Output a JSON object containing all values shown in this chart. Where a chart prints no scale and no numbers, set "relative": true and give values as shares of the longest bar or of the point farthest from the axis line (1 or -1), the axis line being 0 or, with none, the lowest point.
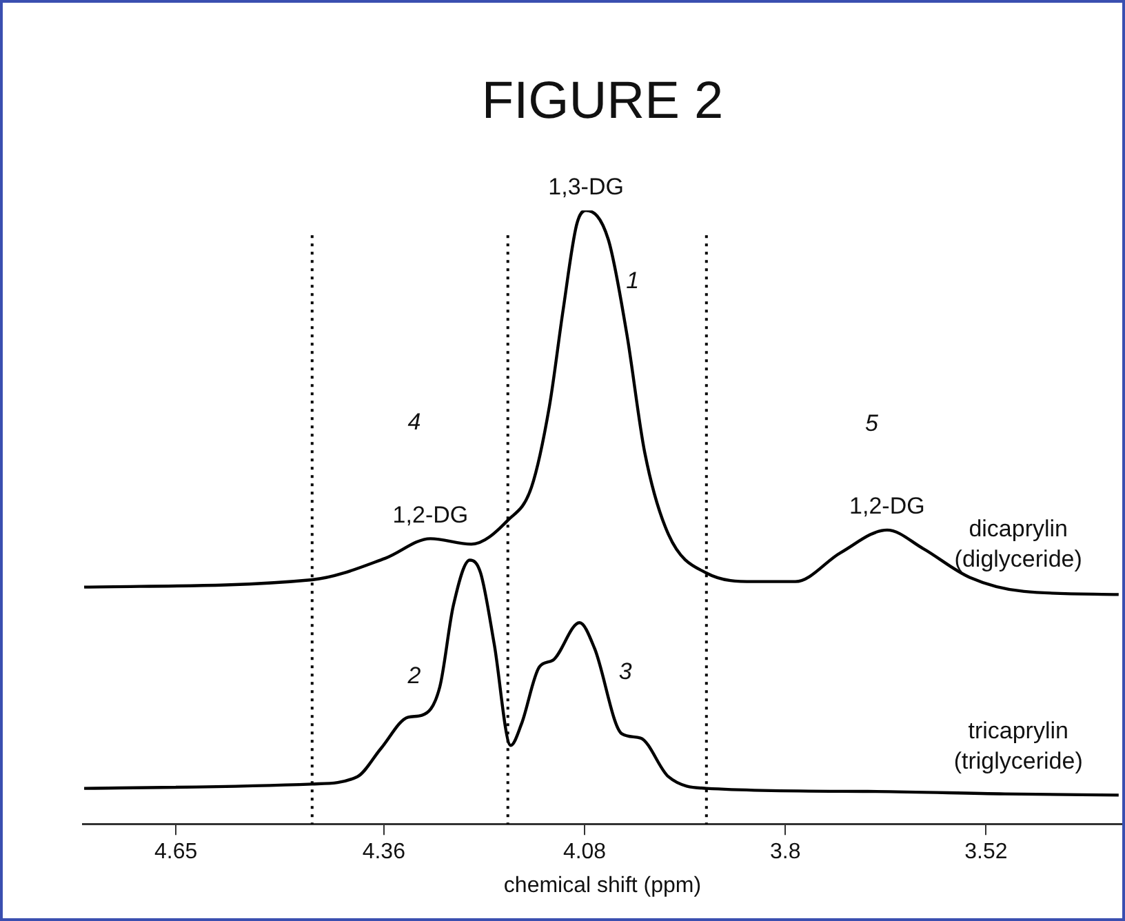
{
  "chart_data": {
    "type": "line",
    "title": "FIGURE 2",
    "xlabel": "chemical shift (ppm)",
    "relative": true,
    "legend": false,
    "grid": false,
    "marker": "none",
    "line_style": "solid",
    "tick_labels": "x",
    "xlim": [
      4.78,
      3.33
    ],
    "xticks": [
      4.65,
      4.36,
      4.08,
      3.8,
      3.52
    ],
    "ref_lines": [
      {
        "axis": "x",
        "value": 4.46,
        "color": "#000000",
        "line_style": "dotted"
      },
      {
        "axis": "x",
        "value": 4.187,
        "color": "#000000",
        "line_style": "dotted"
      },
      {
        "axis": "x",
        "value": 3.91,
        "color": "#000000",
        "line_style": "dotted"
      }
    ],
    "annotations": [
      {
        "text": "1,3-DG",
        "x": 4.078,
        "y": 1.0
      },
      {
        "text": "1,2-DG",
        "x": 4.295,
        "y": 0.465
      },
      {
        "text": "1,2-DG",
        "x": 3.658,
        "y": 0.479
      },
      "1",
      "2",
      "3",
      "4",
      "5"
    ],
    "series": [
      {
        "name": "dicaprylin (diglyceride)",
        "color": "#000000",
        "x": [
          4.778,
          4.46,
          4.358,
          4.295,
          4.238,
          4.187,
          4.154,
          4.129,
          4.11,
          4.091,
          4.078,
          4.047,
          4.021,
          3.996,
          3.963,
          3.91,
          3.843,
          3.786,
          3.723,
          3.658,
          3.608,
          3.543,
          3.467,
          3.335
        ],
        "values": [
          0.386,
          0.398,
          0.433,
          0.465,
          0.456,
          0.495,
          0.549,
          0.681,
          0.837,
          0.977,
          1.0,
          0.953,
          0.798,
          0.605,
          0.472,
          0.409,
          0.395,
          0.395,
          0.442,
          0.479,
          0.449,
          0.402,
          0.379,
          0.374
        ]
      },
      {
        "name": "tricaprylin (triglyceride)",
        "color": "#000000",
        "x": [
          4.778,
          4.46,
          4.397,
          4.364,
          4.326,
          4.307,
          4.282,
          4.263,
          4.24,
          4.225,
          4.206,
          4.183,
          4.168,
          4.143,
          4.124,
          4.087,
          4.066,
          4.028,
          4.002,
          3.963,
          3.91,
          3.685,
          3.494,
          3.335
        ],
        "values": [
          0.058,
          0.065,
          0.077,
          0.123,
          0.174,
          0.177,
          0.223,
          0.356,
          0.43,
          0.409,
          0.293,
          0.128,
          0.163,
          0.256,
          0.267,
          0.328,
          0.286,
          0.147,
          0.14,
          0.077,
          0.058,
          0.053,
          0.049,
          0.047
        ]
      }
    ]
  }
}
